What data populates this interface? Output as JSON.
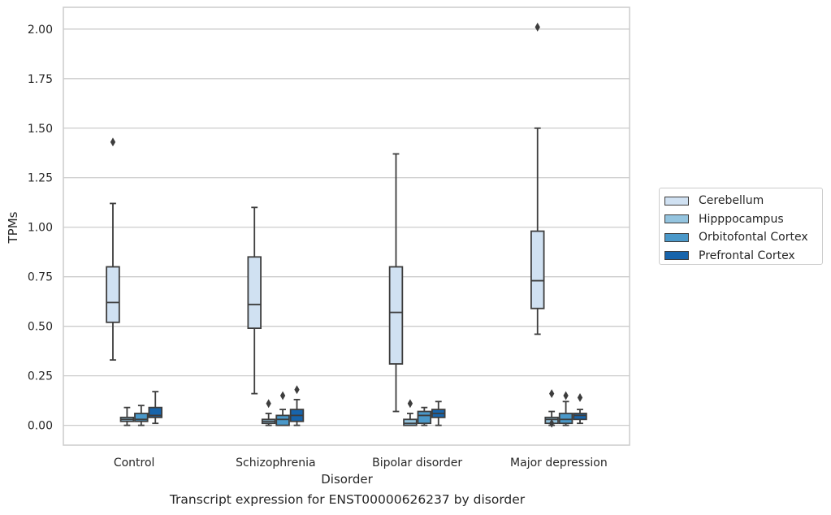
{
  "caption": "Transcript expression for ENST00000626237 by disorder",
  "legend": {
    "items": [
      {
        "label": "Cerebellum",
        "color": "#d0e1f2"
      },
      {
        "label": "Hipppocampus",
        "color": "#94c4df"
      },
      {
        "label": "Orbitofontal Cortex",
        "color": "#4a98c9"
      },
      {
        "label": "Prefrontal Cortex",
        "color": "#1764ab"
      }
    ]
  },
  "chart_data": {
    "type": "boxplot",
    "title": "",
    "xlabel": "Disorder",
    "ylabel": "TPMs",
    "ylim": [
      -0.1,
      2.11
    ],
    "yticks": [
      0.0,
      0.25,
      0.5,
      0.75,
      1.0,
      1.25,
      1.5,
      1.75,
      2.0
    ],
    "ytick_labels": [
      "0.00",
      "0.25",
      "0.50",
      "0.75",
      "1.00",
      "1.25",
      "1.50",
      "1.75",
      "2.00"
    ],
    "grid": "horizontal",
    "legend_position": "outside right",
    "categories": [
      "Control",
      "Schizophrenia",
      "Bipolar disorder",
      "Major depression"
    ],
    "series": [
      {
        "name": "Cerebellum",
        "color": "#d0e1f2",
        "boxes": [
          {
            "whisker_low": 0.33,
            "q1": 0.52,
            "median": 0.62,
            "q3": 0.8,
            "whisker_high": 1.12,
            "outliers": [
              1.43
            ]
          },
          {
            "whisker_low": 0.16,
            "q1": 0.49,
            "median": 0.61,
            "q3": 0.85,
            "whisker_high": 1.1,
            "outliers": []
          },
          {
            "whisker_low": 0.07,
            "q1": 0.31,
            "median": 0.57,
            "q3": 0.8,
            "whisker_high": 1.37,
            "outliers": []
          },
          {
            "whisker_low": 0.46,
            "q1": 0.59,
            "median": 0.73,
            "q3": 0.98,
            "whisker_high": 1.5,
            "outliers": [
              2.01
            ]
          }
        ]
      },
      {
        "name": "Hipppocampus",
        "color": "#94c4df",
        "boxes": [
          {
            "whisker_low": 0.0,
            "q1": 0.02,
            "median": 0.03,
            "q3": 0.04,
            "whisker_high": 0.09,
            "outliers": []
          },
          {
            "whisker_low": 0.0,
            "q1": 0.01,
            "median": 0.02,
            "q3": 0.03,
            "whisker_high": 0.06,
            "outliers": [
              0.11
            ]
          },
          {
            "whisker_low": 0.0,
            "q1": 0.0,
            "median": 0.01,
            "q3": 0.03,
            "whisker_high": 0.06,
            "outliers": [
              0.11
            ]
          },
          {
            "whisker_low": 0.0,
            "q1": 0.01,
            "median": 0.03,
            "q3": 0.04,
            "whisker_high": 0.07,
            "outliers": [
              0.01,
              0.16
            ]
          }
        ]
      },
      {
        "name": "Orbitofontal Cortex",
        "color": "#4a98c9",
        "boxes": [
          {
            "whisker_low": 0.0,
            "q1": 0.02,
            "median": 0.03,
            "q3": 0.06,
            "whisker_high": 0.1,
            "outliers": []
          },
          {
            "whisker_low": 0.0,
            "q1": 0.0,
            "median": 0.03,
            "q3": 0.05,
            "whisker_high": 0.08,
            "outliers": [
              0.15
            ]
          },
          {
            "whisker_low": 0.0,
            "q1": 0.01,
            "median": 0.05,
            "q3": 0.07,
            "whisker_high": 0.09,
            "outliers": []
          },
          {
            "whisker_low": 0.0,
            "q1": 0.01,
            "median": 0.03,
            "q3": 0.06,
            "whisker_high": 0.12,
            "outliers": [
              0.15
            ]
          }
        ]
      },
      {
        "name": "Prefrontal Cortex",
        "color": "#1764ab",
        "boxes": [
          {
            "whisker_low": 0.01,
            "q1": 0.04,
            "median": 0.05,
            "q3": 0.09,
            "whisker_high": 0.17,
            "outliers": []
          },
          {
            "whisker_low": 0.0,
            "q1": 0.02,
            "median": 0.05,
            "q3": 0.08,
            "whisker_high": 0.13,
            "outliers": [
              0.18
            ]
          },
          {
            "whisker_low": 0.0,
            "q1": 0.04,
            "median": 0.06,
            "q3": 0.08,
            "whisker_high": 0.12,
            "outliers": []
          },
          {
            "whisker_low": 0.01,
            "q1": 0.03,
            "median": 0.05,
            "q3": 0.06,
            "whisker_high": 0.08,
            "outliers": [
              0.14
            ]
          }
        ]
      }
    ]
  }
}
